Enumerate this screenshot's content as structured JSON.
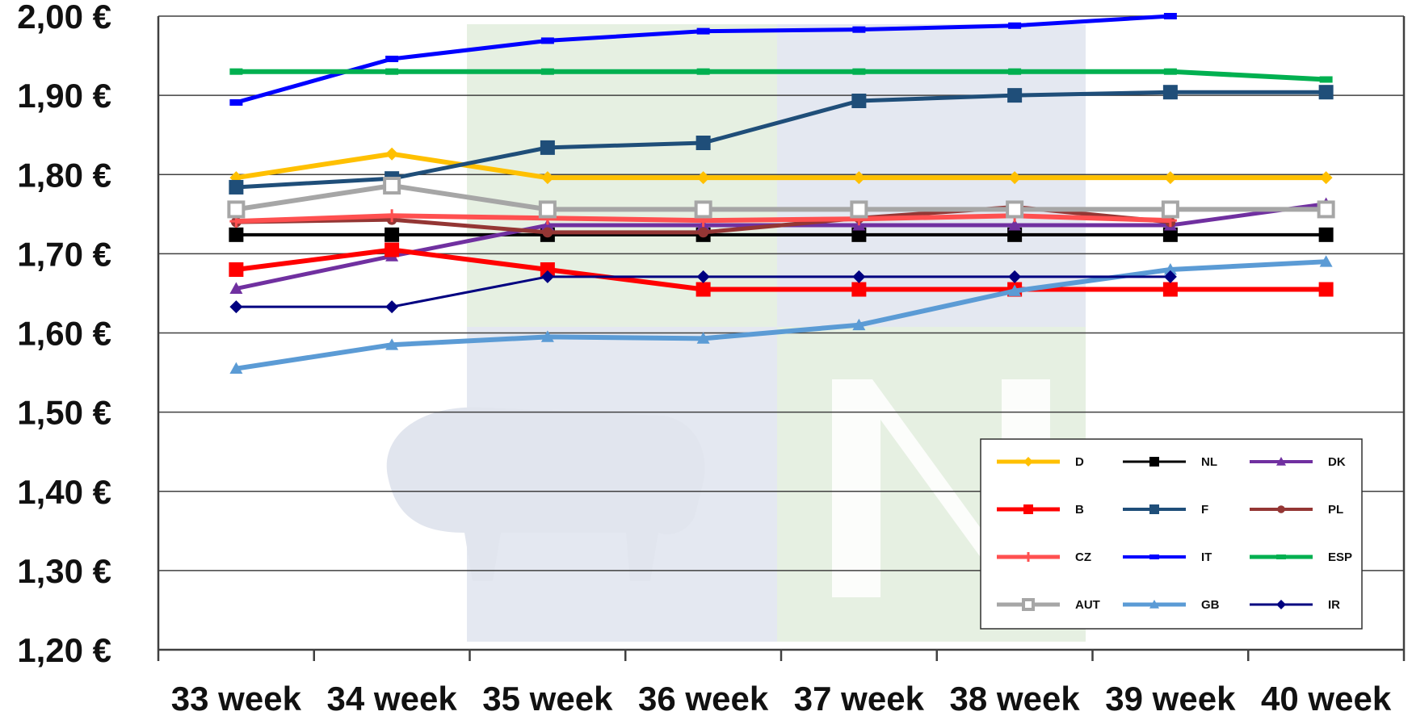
{
  "chart_data": {
    "type": "line",
    "ylim": [
      1.2,
      2.0
    ],
    "y_ticks": [
      "1,20 €",
      "1,30 €",
      "1,40 €",
      "1,50 €",
      "1,60 €",
      "1,70 €",
      "1,80 €",
      "1,90 €",
      "2,00 €"
    ],
    "y_tick_values": [
      1.2,
      1.3,
      1.4,
      1.5,
      1.6,
      1.7,
      1.8,
      1.9,
      2.0
    ],
    "categories": [
      "33 week",
      "34 week",
      "35 week",
      "36 week",
      "37 week",
      "38 week",
      "39 week",
      "40 week"
    ],
    "grid": "horizontal",
    "legend_position": "bottom-right",
    "series": [
      {
        "name": "D",
        "color": "#FFC000",
        "marker": "diamond",
        "line_width": 6,
        "values": [
          1.796,
          1.826,
          1.796,
          1.796,
          1.796,
          1.796,
          1.796,
          1.796
        ]
      },
      {
        "name": "NL",
        "color": "#000000",
        "marker": "square",
        "line_width": 4,
        "values": [
          1.724,
          1.724,
          1.724,
          1.724,
          1.724,
          1.724,
          1.724,
          1.724
        ]
      },
      {
        "name": "DK",
        "color": "#7030A0",
        "marker": "triangle",
        "line_width": 5,
        "values": [
          1.656,
          1.697,
          1.736,
          1.736,
          1.736,
          1.736,
          1.736,
          1.763
        ]
      },
      {
        "name": "B",
        "color": "#FF0000",
        "marker": "square",
        "line_width": 6,
        "values": [
          1.68,
          1.705,
          1.68,
          1.655,
          1.655,
          1.655,
          1.655,
          1.655
        ]
      },
      {
        "name": "F",
        "color": "#1F4E79",
        "marker": "square",
        "line_width": 5,
        "values": [
          1.784,
          1.795,
          1.834,
          1.84,
          1.893,
          1.9,
          1.904,
          1.904
        ]
      },
      {
        "name": "PL",
        "color": "#943634",
        "marker": "circle",
        "line_width": 5,
        "values": [
          1.74,
          1.743,
          1.727,
          1.727,
          1.745,
          1.759,
          1.74,
          null
        ]
      },
      {
        "name": "CZ",
        "color": "#FF5050",
        "marker": "plus",
        "line_width": 6,
        "values": [
          1.741,
          1.748,
          1.745,
          1.742,
          1.744,
          1.748,
          1.742,
          null
        ]
      },
      {
        "name": "IT",
        "color": "#0000FF",
        "marker": "dash",
        "line_width": 5,
        "values": [
          1.891,
          1.946,
          1.969,
          1.981,
          1.983,
          1.988,
          2.0,
          null
        ]
      },
      {
        "name": "ESP",
        "color": "#00B050",
        "marker": "dash",
        "line_width": 6,
        "values": [
          1.93,
          1.93,
          1.93,
          1.93,
          1.93,
          1.93,
          1.93,
          1.92
        ]
      },
      {
        "name": "AUT",
        "color": "#A6A6A6",
        "marker": "square-open",
        "line_width": 6,
        "values": [
          1.756,
          1.786,
          1.756,
          1.756,
          1.756,
          1.756,
          1.756,
          1.756
        ]
      },
      {
        "name": "GB",
        "color": "#5B9BD5",
        "marker": "triangle",
        "line_width": 6,
        "values": [
          1.555,
          1.585,
          1.595,
          1.593,
          1.61,
          1.653,
          1.68,
          1.69
        ]
      },
      {
        "name": "IR",
        "color": "#000080",
        "marker": "diamond",
        "line_width": 3,
        "values": [
          1.633,
          1.633,
          1.671,
          1.671,
          1.671,
          1.671,
          1.671,
          null
        ]
      }
    ]
  }
}
